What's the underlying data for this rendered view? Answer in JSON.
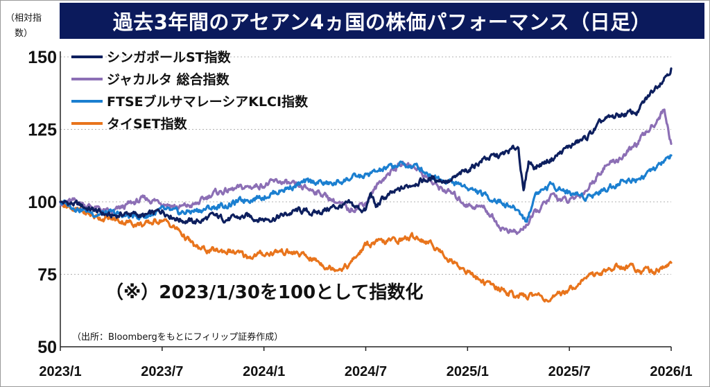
{
  "header": {
    "title": "過去3年間のアセアン4ヵ国の株価パフォーマンス（日足）",
    "unit_label": "（相対指数）"
  },
  "note": "（※）2023/1/30を100として指数化",
  "source": "（出所：Bloombergをもとにフィリップ証券作成）",
  "colors": {
    "title_bg": "#0b1a5c",
    "singapore": "#0d1f5e",
    "jakarta": "#8c6fb5",
    "klci": "#1b7fd0",
    "thai": "#e8741c",
    "grid": "#b0b0b0"
  },
  "chart_data": {
    "type": "line",
    "x_labels": [
      "2023/1",
      "2023/7",
      "2024/1",
      "2024/7",
      "2025/1",
      "2025/7",
      "2026/1"
    ],
    "x_range": [
      0,
      36
    ],
    "x_unit": "months since 2023/1",
    "ylim": [
      50,
      150
    ],
    "yticks": [
      50,
      75,
      100,
      125,
      150
    ],
    "grid": "horizontal dotted",
    "legend_position": "top-left",
    "series": [
      {
        "name": "シンガポールST指数",
        "color": "#0d1f5e",
        "points": [
          [
            0,
            100
          ],
          [
            1,
            99
          ],
          [
            2,
            97
          ],
          [
            3,
            95
          ],
          [
            4,
            96
          ],
          [
            5,
            95
          ],
          [
            6,
            97
          ],
          [
            7,
            94
          ],
          [
            8,
            93
          ],
          [
            9,
            95
          ],
          [
            10,
            94
          ],
          [
            11,
            95
          ],
          [
            12,
            94
          ],
          [
            13,
            95
          ],
          [
            14,
            97
          ],
          [
            15,
            96
          ],
          [
            16,
            98
          ],
          [
            17,
            99
          ],
          [
            18,
            97
          ],
          [
            18.3,
            103
          ],
          [
            18.6,
            98
          ],
          [
            19,
            101
          ],
          [
            20,
            104
          ],
          [
            21,
            107
          ],
          [
            22,
            108
          ],
          [
            23,
            107
          ],
          [
            24,
            111
          ],
          [
            25,
            115
          ],
          [
            26,
            116
          ],
          [
            27,
            119
          ],
          [
            27.3,
            103
          ],
          [
            27.6,
            114
          ],
          [
            28,
            112
          ],
          [
            29,
            115
          ],
          [
            30,
            119
          ],
          [
            31,
            122
          ],
          [
            32,
            128
          ],
          [
            33,
            130
          ],
          [
            34,
            131
          ],
          [
            35,
            139
          ],
          [
            36,
            146
          ]
        ]
      },
      {
        "name": "ジャカルタ 総合指数",
        "color": "#8c6fb5",
        "points": [
          [
            0,
            100
          ],
          [
            1,
            100
          ],
          [
            2,
            98
          ],
          [
            3,
            96
          ],
          [
            4,
            99
          ],
          [
            5,
            101
          ],
          [
            6,
            100
          ],
          [
            7,
            98
          ],
          [
            8,
            99
          ],
          [
            9,
            103
          ],
          [
            10,
            104
          ],
          [
            11,
            105
          ],
          [
            12,
            106
          ],
          [
            13,
            107
          ],
          [
            14,
            105
          ],
          [
            15,
            104
          ],
          [
            16,
            101
          ],
          [
            17,
            97
          ],
          [
            18,
            100
          ],
          [
            19,
            108
          ],
          [
            20,
            113
          ],
          [
            21,
            112
          ],
          [
            22,
            106
          ],
          [
            23,
            103
          ],
          [
            24,
            99
          ],
          [
            25,
            98
          ],
          [
            26,
            91
          ],
          [
            27,
            89
          ],
          [
            28,
            96
          ],
          [
            29,
            102
          ],
          [
            30,
            100
          ],
          [
            31,
            104
          ],
          [
            32,
            112
          ],
          [
            33,
            115
          ],
          [
            34,
            120
          ],
          [
            35,
            127
          ],
          [
            35.6,
            132
          ],
          [
            36,
            120
          ]
        ]
      },
      {
        "name": "FTSEブルサマレーシアKLCI指数",
        "color": "#1b7fd0",
        "points": [
          [
            0,
            100
          ],
          [
            1,
            98
          ],
          [
            2,
            96
          ],
          [
            3,
            96
          ],
          [
            4,
            95
          ],
          [
            5,
            95
          ],
          [
            6,
            97
          ],
          [
            7,
            96
          ],
          [
            8,
            97
          ],
          [
            9,
            98
          ],
          [
            10,
            99
          ],
          [
            11,
            101
          ],
          [
            12,
            102
          ],
          [
            13,
            104
          ],
          [
            14,
            106
          ],
          [
            15,
            107
          ],
          [
            16,
            106
          ],
          [
            17,
            108
          ],
          [
            18,
            109
          ],
          [
            19,
            111
          ],
          [
            20,
            113
          ],
          [
            21,
            112
          ],
          [
            22,
            109
          ],
          [
            23,
            107
          ],
          [
            24,
            105
          ],
          [
            25,
            102
          ],
          [
            26,
            100
          ],
          [
            27,
            97
          ],
          [
            27.5,
            93
          ],
          [
            28,
            103
          ],
          [
            29,
            106
          ],
          [
            30,
            103
          ],
          [
            31,
            102
          ],
          [
            32,
            104
          ],
          [
            33,
            107
          ],
          [
            34,
            108
          ],
          [
            35,
            111
          ],
          [
            36,
            116
          ]
        ]
      },
      {
        "name": "タイSET指数",
        "color": "#e8741c",
        "points": [
          [
            0,
            100
          ],
          [
            1,
            97
          ],
          [
            2,
            95
          ],
          [
            3,
            94
          ],
          [
            4,
            93
          ],
          [
            5,
            92
          ],
          [
            6,
            94
          ],
          [
            7,
            90
          ],
          [
            8,
            84
          ],
          [
            9,
            83
          ],
          [
            10,
            83
          ],
          [
            11,
            81
          ],
          [
            12,
            82
          ],
          [
            13,
            83
          ],
          [
            14,
            82
          ],
          [
            15,
            80
          ],
          [
            16,
            77
          ],
          [
            17,
            78
          ],
          [
            18,
            85
          ],
          [
            19,
            86
          ],
          [
            20,
            87
          ],
          [
            21,
            88
          ],
          [
            22,
            85
          ],
          [
            23,
            80
          ],
          [
            24,
            76
          ],
          [
            25,
            72
          ],
          [
            26,
            70
          ],
          [
            27,
            67
          ],
          [
            28,
            68
          ],
          [
            29,
            66
          ],
          [
            30,
            70
          ],
          [
            31,
            74
          ],
          [
            32,
            76
          ],
          [
            33,
            78
          ],
          [
            34,
            77
          ],
          [
            35,
            76
          ],
          [
            36,
            79
          ]
        ]
      }
    ]
  }
}
